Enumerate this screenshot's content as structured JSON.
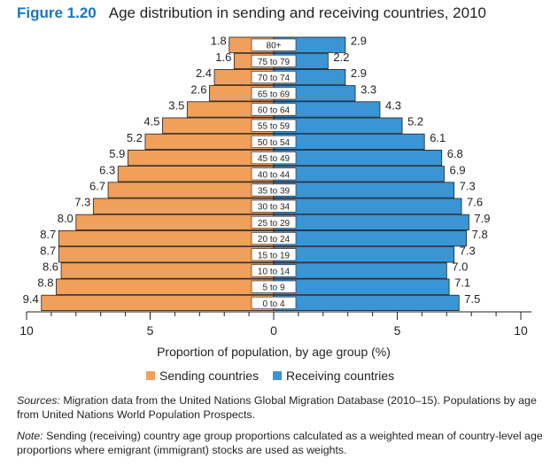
{
  "figure": {
    "number": "Figure 1.20",
    "title": "Age distribution in sending and receiving countries, 2010"
  },
  "chart_data": {
    "type": "bar",
    "orientation": "horizontal-pyramid",
    "categories": [
      "80+",
      "75 to 79",
      "70 to 74",
      "65 to 69",
      "60 to 64",
      "55 to 59",
      "50 to 54",
      "45 to 49",
      "40 to 44",
      "35 to 39",
      "30 to 34",
      "25 to 29",
      "20 to 24",
      "15 to 19",
      "10 to 14",
      "5 to 9",
      "0 to 4"
    ],
    "series": [
      {
        "name": "Sending countries",
        "side": "left",
        "color": "#f0a05a",
        "values": [
          1.8,
          1.6,
          2.4,
          2.6,
          3.5,
          4.5,
          5.2,
          5.9,
          6.3,
          6.7,
          7.3,
          8.0,
          8.7,
          8.7,
          8.6,
          8.8,
          9.4
        ]
      },
      {
        "name": "Receiving countries",
        "side": "right",
        "color": "#3a95d4",
        "values": [
          2.9,
          2.2,
          2.9,
          3.3,
          4.3,
          5.2,
          6.1,
          6.8,
          6.9,
          7.3,
          7.6,
          7.9,
          7.8,
          7.3,
          7.0,
          7.1,
          7.5
        ]
      }
    ],
    "xlabel": "Proportion of population, by age group (%)",
    "xticks": [
      10,
      5,
      0,
      5,
      10
    ],
    "xlim": [
      -10,
      10
    ],
    "legend_position": "bottom"
  },
  "sources": {
    "label": "Sources:",
    "text": " Migration data from the United Nations Global Migration Database (2010–15). Populations by age from United Nations World Population Prospects."
  },
  "note": {
    "label": "Note:",
    "text": " Sending (receiving) country age group proportions calculated as a weighted mean of country-level age proportions where emigrant (immigrant) stocks are used as weights."
  }
}
